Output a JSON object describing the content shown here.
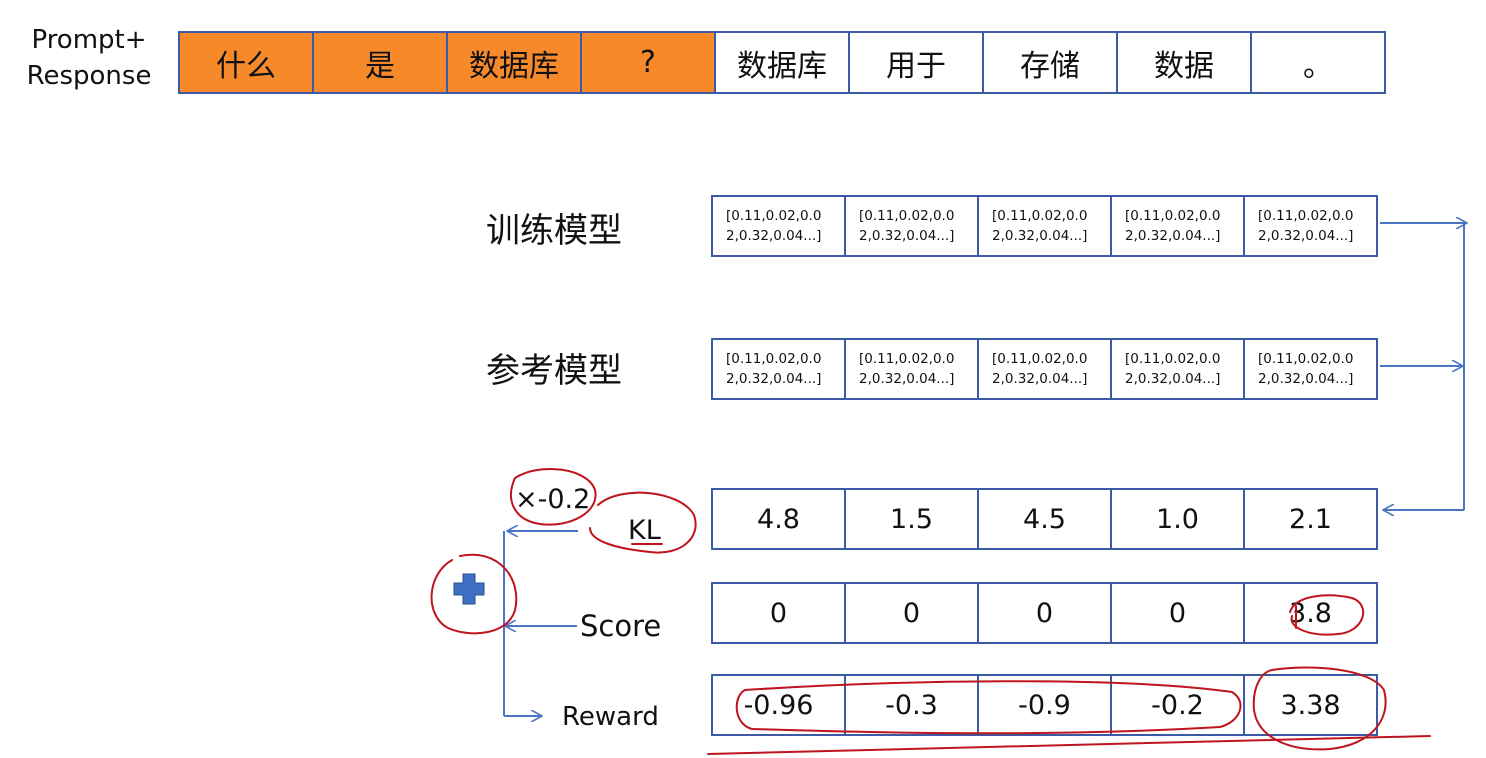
{
  "prompt_label_line1": "Prompt+",
  "prompt_label_line2": "Response",
  "tokens": [
    {
      "text": "什么",
      "kind": "prompt"
    },
    {
      "text": "是",
      "kind": "prompt"
    },
    {
      "text": "数据库",
      "kind": "prompt"
    },
    {
      "text": "?",
      "kind": "prompt"
    },
    {
      "text": "数据库",
      "kind": "response"
    },
    {
      "text": "用于",
      "kind": "response"
    },
    {
      "text": "存储",
      "kind": "response"
    },
    {
      "text": "数据",
      "kind": "response"
    },
    {
      "text": "。",
      "kind": "response"
    }
  ],
  "train_model_label": "训练模型",
  "ref_model_label": "参考模型",
  "train_vectors": [
    "[0.11,0.02,0.0\n2,0.32,0.04...]",
    "[0.11,0.02,0.0\n2,0.32,0.04...]",
    "[0.11,0.02,0.0\n2,0.32,0.04...]",
    "[0.11,0.02,0.0\n2,0.32,0.04...]",
    "[0.11,0.02,0.0\n2,0.32,0.04...]"
  ],
  "ref_vectors": [
    "[0.11,0.02,0.0\n2,0.32,0.04...]",
    "[0.11,0.02,0.0\n2,0.32,0.04...]",
    "[0.11,0.02,0.0\n2,0.32,0.04...]",
    "[0.11,0.02,0.0\n2,0.32,0.04...]",
    "[0.11,0.02,0.0\n2,0.32,0.04...]"
  ],
  "kl_label": "KL",
  "kl_coef_label": "×-0.2",
  "kl_values": [
    "4.8",
    "1.5",
    "4.5",
    "1.0",
    "2.1"
  ],
  "score_label": "Score",
  "score_values": [
    "0",
    "0",
    "0",
    "0",
    "3.8"
  ],
  "reward_label": "Reward",
  "reward_values": [
    "-0.96",
    "-0.3",
    "-0.9",
    "-0.2",
    "3.38"
  ],
  "colors": {
    "prompt_fill": "#f68a2b",
    "border": "#3c5aa6",
    "arrow": "#4a74c4",
    "annotation": "#c0141c",
    "plus": "#3d6fc4"
  },
  "plus_icon": "plus-icon"
}
